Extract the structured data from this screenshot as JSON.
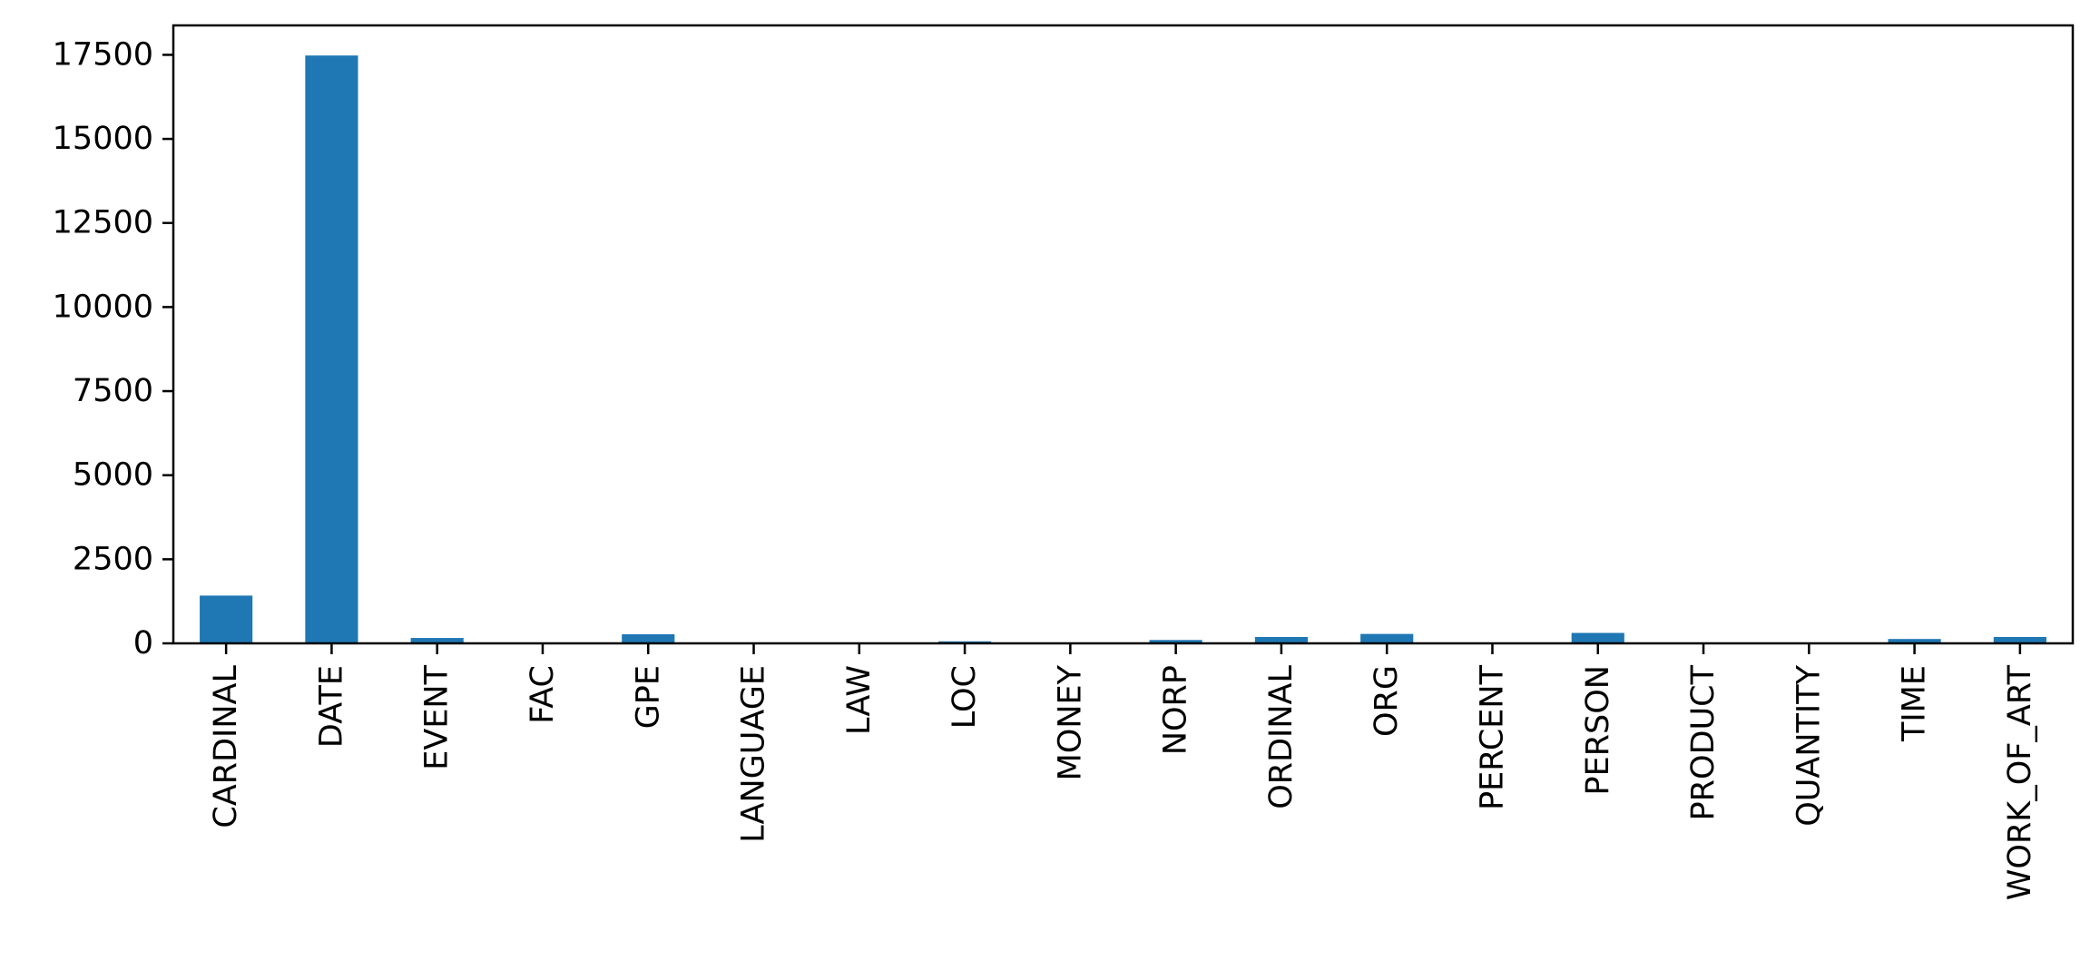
{
  "chart_data": {
    "type": "bar",
    "title": "",
    "xlabel": "",
    "ylabel": "",
    "categories": [
      "CARDINAL",
      "DATE",
      "EVENT",
      "FAC",
      "GPE",
      "LANGUAGE",
      "LAW",
      "LOC",
      "MONEY",
      "NORP",
      "ORDINAL",
      "ORG",
      "PERCENT",
      "PERSON",
      "PRODUCT",
      "QUANTITY",
      "TIME",
      "WORK_OF_ART"
    ],
    "values": [
      1420,
      17480,
      160,
      10,
      270,
      5,
      20,
      60,
      15,
      100,
      190,
      280,
      10,
      310,
      10,
      5,
      130,
      190
    ],
    "ylim": [
      0,
      18375
    ],
    "yticks": [
      0,
      2500,
      5000,
      7500,
      10000,
      12500,
      15000,
      17500
    ],
    "ytick_labels": [
      "0",
      "2500",
      "5000",
      "7500",
      "10000",
      "12500",
      "15000",
      "17500"
    ],
    "grid": false,
    "legend": "none",
    "bar_color": "#1f77b4"
  }
}
